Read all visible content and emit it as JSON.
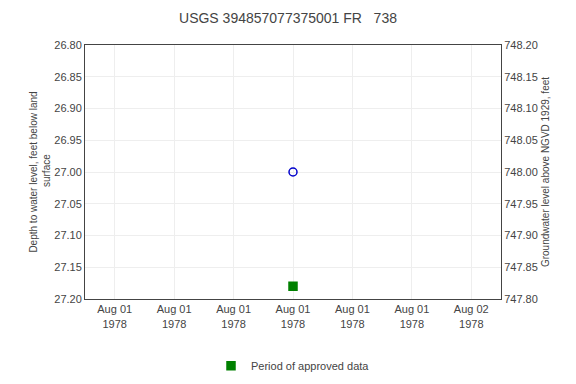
{
  "chart_data": {
    "type": "scatter",
    "title": "USGS 394857077375001 FR   738",
    "y_label": "Depth to water level, feet below land\n surface",
    "y2_label": "Groundwater level above NGVD 1929, feet",
    "categories": [
      "Aug 01\n1978",
      "Aug 01\n1978",
      "Aug 01\n1978",
      "Aug 01\n1978",
      "Aug 01\n1978",
      "Aug 01\n1978",
      "Aug 02\n1978"
    ],
    "series": [
      {
        "color": "#0000cc",
        "marker": "circle-open",
        "values": [
          null,
          null,
          null,
          27.0,
          null,
          null,
          null
        ]
      },
      {
        "name": "Period of approved data",
        "color": "#008000",
        "marker": "square",
        "values": [
          null,
          null,
          null,
          27.18,
          null,
          null,
          null
        ]
      }
    ],
    "ylim": [
      27.2,
      26.8
    ],
    "yticks": [
      {
        "value": 26.8,
        "label": "26.80"
      },
      {
        "value": 26.85,
        "label": "26.85"
      },
      {
        "value": 26.9,
        "label": "26.90"
      },
      {
        "value": 26.95,
        "label": "26.95"
      },
      {
        "value": 27.0,
        "label": "27.00"
      },
      {
        "value": 27.05,
        "label": "27.05"
      },
      {
        "value": 27.1,
        "label": "27.10"
      },
      {
        "value": 27.15,
        "label": "27.15"
      },
      {
        "value": 27.2,
        "label": "27.20"
      }
    ],
    "y2lim": [
      747.8,
      748.2
    ],
    "y2ticks": [
      {
        "value": 748.2,
        "label": "748.20"
      },
      {
        "value": 748.15,
        "label": "748.15"
      },
      {
        "value": 748.1,
        "label": "748.10"
      },
      {
        "value": 748.05,
        "label": "748.05"
      },
      {
        "value": 748.0,
        "label": "748.00"
      },
      {
        "value": 747.95,
        "label": "747.95"
      },
      {
        "value": 747.9,
        "label": "747.90"
      },
      {
        "value": 747.85,
        "label": "747.85"
      },
      {
        "value": 747.8,
        "label": "747.80"
      }
    ],
    "grid": true,
    "legend": "bottom"
  }
}
